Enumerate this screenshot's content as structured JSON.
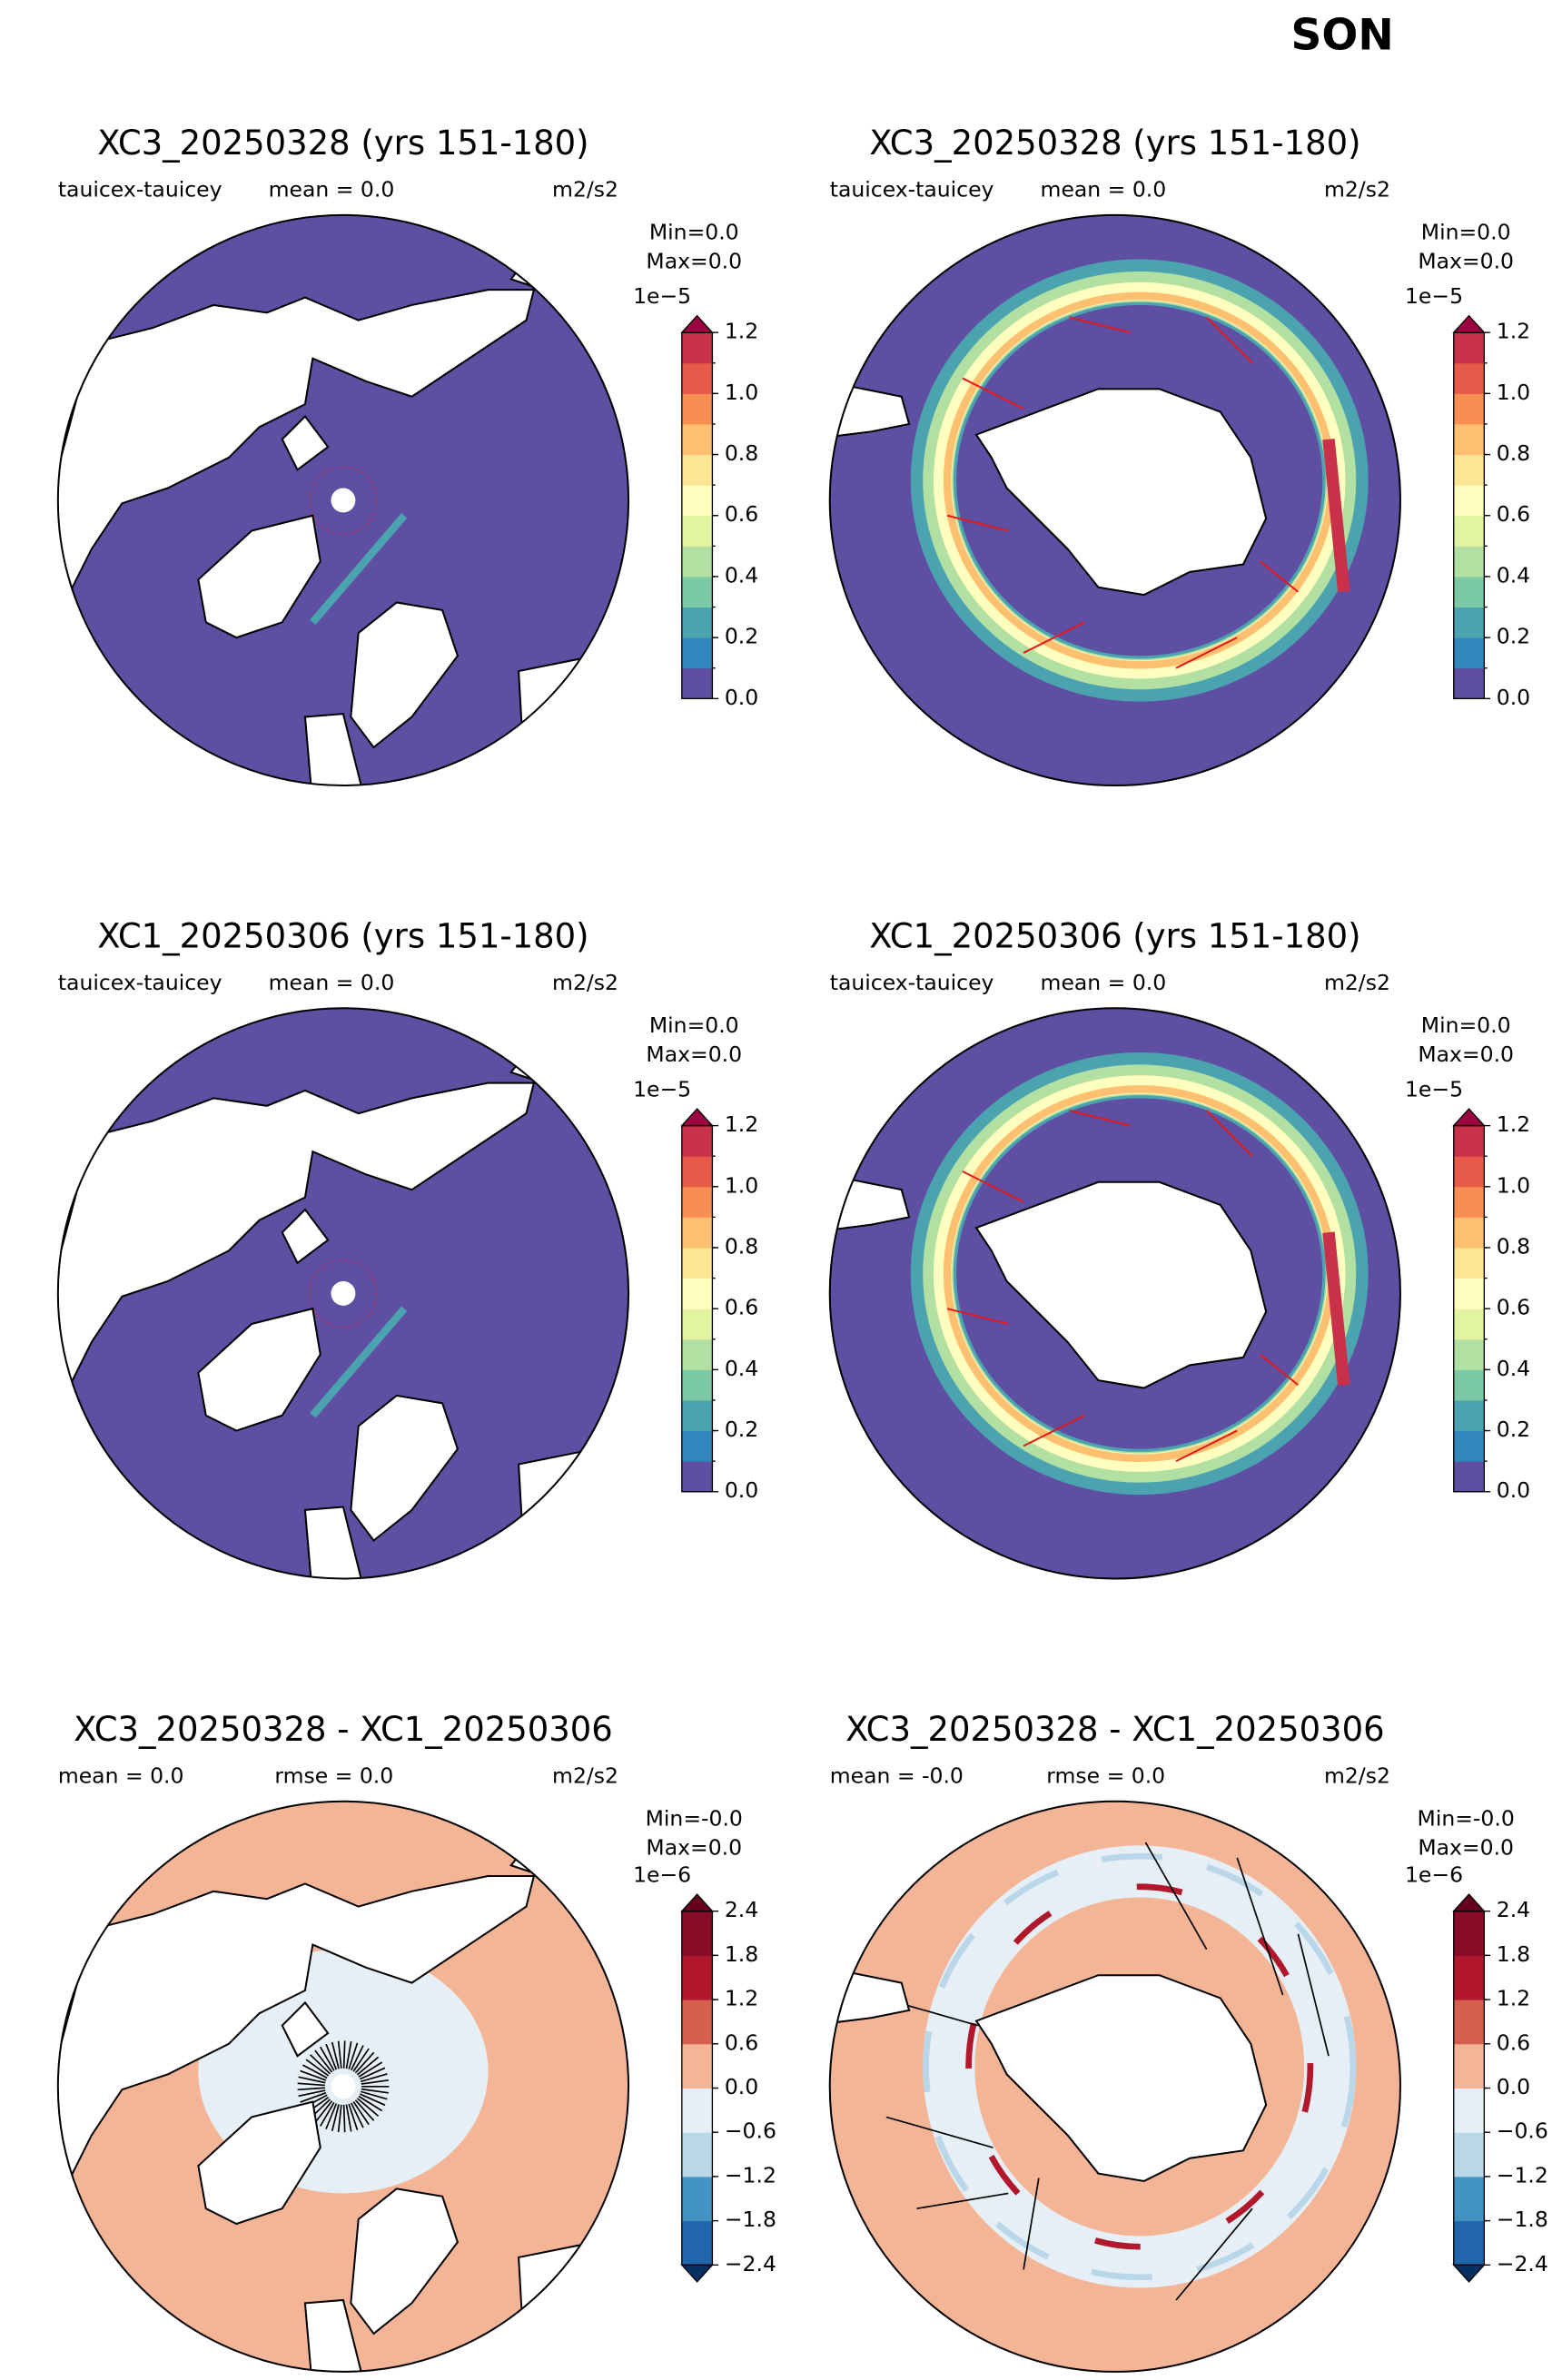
{
  "title": "SON",
  "panels": [
    {
      "title": "XC3_20250328 (yrs 151-180)",
      "field": "tauicex-tauicey",
      "mean": "mean = 0.0",
      "units": "m2/s2",
      "minmax": [
        "Min=0.0",
        "Max=0.0"
      ],
      "colorbar": {
        "scale": "1e−5",
        "lim": [
          0,
          1.2
        ],
        "ticks": [
          {
            "value": 0,
            "label": "0.0"
          },
          0.2,
          0.4,
          0.6,
          0.8,
          {
            "value": 1,
            "label": "1.0"
          },
          1.2
        ],
        "colors": [
          "#5e4fa2",
          "#3288bd",
          "#4ba3b0",
          "#7bc9a5",
          "#b2e0a2",
          "#e3f4a0",
          "#fefebe",
          "#fee593",
          "#fdc070",
          "#f88e53",
          "#e75948",
          "#c93049"
        ],
        "extend_max": "#9e0142"
      }
    },
    {
      "title": "XC3_20250328 (yrs 151-180)",
      "field": "tauicex-tauicey",
      "mean": "mean = 0.0",
      "units": "m2/s2",
      "minmax": [
        "Min=0.0",
        "Max=0.0"
      ],
      "colorbar": {
        "scale": "1e−5",
        "lim": [
          0,
          1.2
        ],
        "ticks": [
          {
            "value": 0,
            "label": "0.0"
          },
          0.2,
          0.4,
          0.6,
          0.8,
          {
            "value": 1,
            "label": "1.0"
          },
          1.2
        ],
        "colors": [
          "#5e4fa2",
          "#3288bd",
          "#4ba3b0",
          "#7bc9a5",
          "#b2e0a2",
          "#e3f4a0",
          "#fefebe",
          "#fee593",
          "#fdc070",
          "#f88e53",
          "#e75948",
          "#c93049"
        ],
        "extend_max": "#9e0142"
      }
    },
    {
      "title": "XC1_20250306 (yrs 151-180)",
      "field": "tauicex-tauicey",
      "mean": "mean = 0.0",
      "units": "m2/s2",
      "minmax": [
        "Min=0.0",
        "Max=0.0"
      ],
      "colorbar": {
        "scale": "1e−5",
        "lim": [
          0,
          1.2
        ],
        "ticks": [
          {
            "value": 0,
            "label": "0.0"
          },
          0.2,
          0.4,
          0.6,
          0.8,
          {
            "value": 1,
            "label": "1.0"
          },
          1.2
        ],
        "colors": [
          "#5e4fa2",
          "#3288bd",
          "#4ba3b0",
          "#7bc9a5",
          "#b2e0a2",
          "#e3f4a0",
          "#fefebe",
          "#fee593",
          "#fdc070",
          "#f88e53",
          "#e75948",
          "#c93049"
        ],
        "extend_max": "#9e0142"
      }
    },
    {
      "title": "XC1_20250306 (yrs 151-180)",
      "field": "tauicex-tauicey",
      "mean": "mean = 0.0",
      "units": "m2/s2",
      "minmax": [
        "Min=0.0",
        "Max=0.0"
      ],
      "colorbar": {
        "scale": "1e−5",
        "lim": [
          0,
          1.2
        ],
        "ticks": [
          {
            "value": 0,
            "label": "0.0"
          },
          0.2,
          0.4,
          0.6,
          0.8,
          {
            "value": 1,
            "label": "1.0"
          },
          1.2
        ],
        "colors": [
          "#5e4fa2",
          "#3288bd",
          "#4ba3b0",
          "#7bc9a5",
          "#b2e0a2",
          "#e3f4a0",
          "#fefebe",
          "#fee593",
          "#fdc070",
          "#f88e53",
          "#e75948",
          "#c93049"
        ],
        "extend_max": "#9e0142"
      }
    },
    {
      "title": "XC3_20250328 - XC1_20250306",
      "mean": "mean = 0.0",
      "rmse": "rmse = 0.0",
      "units": "m2/s2",
      "minmax": [
        "Min=-0.0",
        "Max=0.0"
      ],
      "colorbar": {
        "scale": "1e−6",
        "lim": [
          -2.4,
          2.4
        ],
        "ticks": [
          {
            "value": -2.4,
            "label": "−2.4"
          },
          {
            "value": -1.8,
            "label": "−1.8"
          },
          {
            "value": -1.2,
            "label": "−1.2"
          },
          {
            "value": -0.6,
            "label": "−0.6"
          },
          {
            "value": 0,
            "label": "0.0"
          },
          0.6,
          1.2,
          1.8,
          2.4
        ],
        "colors": [
          "#2166ac",
          "#4393c3",
          "#b9d7e9",
          "#e5eff5",
          "#f4b596",
          "#d6604d",
          "#b2182b",
          "#8a0b25"
        ],
        "extend_min": "#053061",
        "extend_max": "#67001f"
      }
    },
    {
      "title": "XC3_20250328 - XC1_20250306",
      "mean": "mean = -0.0",
      "rmse": "rmse = 0.0",
      "units": "m2/s2",
      "minmax": [
        "Min=-0.0",
        "Max=0.0"
      ],
      "colorbar": {
        "scale": "1e−6",
        "lim": [
          -2.4,
          2.4
        ],
        "ticks": [
          {
            "value": -2.4,
            "label": "−2.4"
          },
          {
            "value": -1.8,
            "label": "−1.8"
          },
          {
            "value": -1.2,
            "label": "−1.2"
          },
          {
            "value": -0.6,
            "label": "−0.6"
          },
          {
            "value": 0,
            "label": "0.0"
          },
          0.6,
          1.2,
          1.8,
          2.4
        ],
        "colors": [
          "#2166ac",
          "#4393c3",
          "#b9d7e9",
          "#e5eff5",
          "#f4b596",
          "#d6604d",
          "#b2182b",
          "#8a0b25"
        ],
        "extend_min": "#053061",
        "extend_max": "#67001f"
      }
    }
  ]
}
